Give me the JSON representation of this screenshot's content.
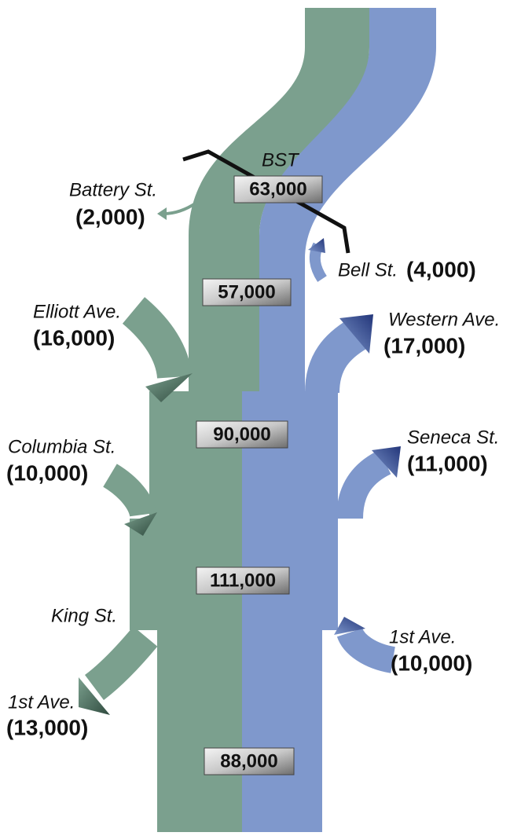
{
  "corridor_label": "BST",
  "volumes": [
    "63,000",
    "57,000",
    "90,000",
    "111,000",
    "88,000"
  ],
  "ramps": [
    {
      "name": "Battery St.",
      "volume": "(2,000)"
    },
    {
      "name": "Bell St.",
      "volume": "(4,000)"
    },
    {
      "name": "Elliott Ave.",
      "volume": "(16,000)"
    },
    {
      "name": "Western Ave.",
      "volume": "(17,000)"
    },
    {
      "name": "Columbia St.",
      "volume": "(10,000)"
    },
    {
      "name": "Seneca St.",
      "volume": "(11,000)"
    },
    {
      "name": "1st Ave.",
      "volume": "(13,000)"
    },
    {
      "name": "1st Ave.",
      "volume": "(10,000)"
    }
  ],
  "labels": [
    "King St."
  ]
}
